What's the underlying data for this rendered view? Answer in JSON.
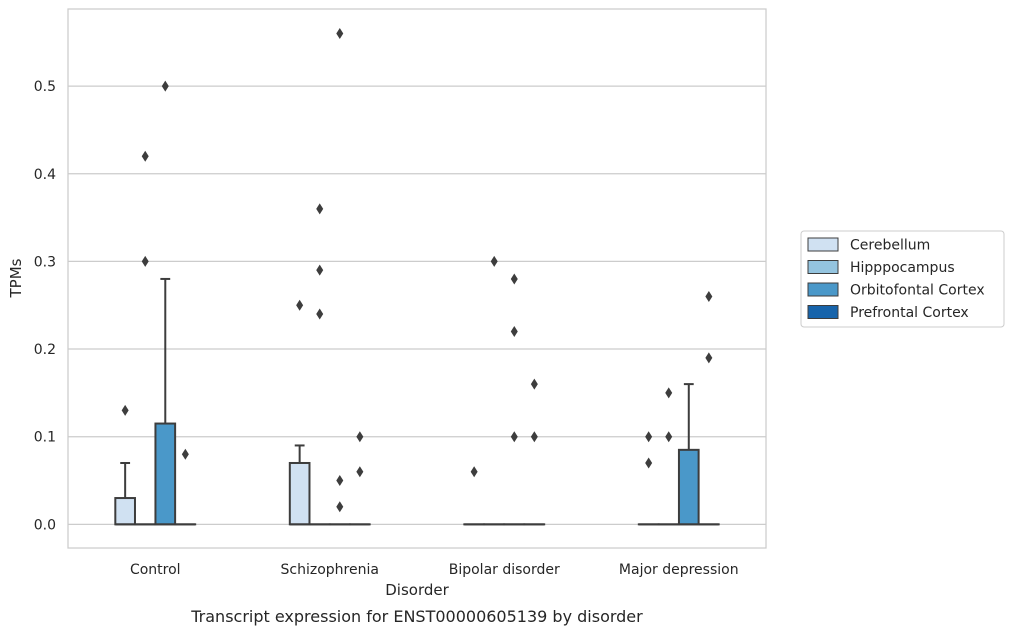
{
  "chart_data": {
    "type": "box",
    "caption": "Transcript expression for ENST00000605139 by disorder",
    "xlabel": "Disorder",
    "ylabel": "TPMs",
    "ylim": [
      -0.027,
      0.588
    ],
    "yticks": [
      0.0,
      0.1,
      0.2,
      0.3,
      0.4,
      0.5
    ],
    "ytick_labels": [
      "0.0",
      "0.1",
      "0.2",
      "0.3",
      "0.4",
      "0.5"
    ],
    "grid": "horizontal",
    "legend_position": "right",
    "categories": [
      "Control",
      "Schizophrenia",
      "Bipolar disorder",
      "Major depression"
    ],
    "series": [
      {
        "name": "Cerebellum",
        "color": "#d0e1f2",
        "boxes": [
          {
            "q1": 0.0,
            "median": 0.0,
            "q3": 0.03,
            "whisker_low": 0.0,
            "whisker_high": 0.07,
            "outliers": [
              0.13
            ]
          },
          {
            "q1": 0.0,
            "median": 0.0,
            "q3": 0.07,
            "whisker_low": 0.0,
            "whisker_high": 0.09,
            "outliers": [
              0.25
            ]
          },
          {
            "q1": 0.0,
            "median": 0.0,
            "q3": 0.0,
            "whisker_low": 0.0,
            "whisker_high": 0.0,
            "outliers": [
              0.06
            ]
          },
          {
            "q1": 0.0,
            "median": 0.0,
            "q3": 0.0,
            "whisker_low": 0.0,
            "whisker_high": 0.0,
            "outliers": [
              0.07,
              0.1
            ]
          }
        ]
      },
      {
        "name": "Hipppocampus",
        "color": "#94c4df",
        "boxes": [
          {
            "q1": 0.0,
            "median": 0.0,
            "q3": 0.0,
            "whisker_low": 0.0,
            "whisker_high": 0.0,
            "outliers": [
              0.3,
              0.42
            ]
          },
          {
            "q1": 0.0,
            "median": 0.0,
            "q3": 0.0,
            "whisker_low": 0.0,
            "whisker_high": 0.0,
            "outliers": [
              0.24,
              0.29,
              0.36
            ]
          },
          {
            "q1": 0.0,
            "median": 0.0,
            "q3": 0.0,
            "whisker_low": 0.0,
            "whisker_high": 0.0,
            "outliers": [
              0.3
            ]
          },
          {
            "q1": 0.0,
            "median": 0.0,
            "q3": 0.0,
            "whisker_low": 0.0,
            "whisker_high": 0.0,
            "outliers": [
              0.1,
              0.15
            ]
          }
        ]
      },
      {
        "name": "Orbitofontal Cortex",
        "color": "#4a98c9",
        "boxes": [
          {
            "q1": 0.0,
            "median": 0.0,
            "q3": 0.115,
            "whisker_low": 0.0,
            "whisker_high": 0.28,
            "outliers": [
              0.5
            ]
          },
          {
            "q1": 0.0,
            "median": 0.0,
            "q3": 0.0,
            "whisker_low": 0.0,
            "whisker_high": 0.0,
            "outliers": [
              0.02,
              0.05,
              0.56
            ]
          },
          {
            "q1": 0.0,
            "median": 0.0,
            "q3": 0.0,
            "whisker_low": 0.0,
            "whisker_high": 0.0,
            "outliers": [
              0.1,
              0.22,
              0.28
            ]
          },
          {
            "q1": 0.0,
            "median": 0.0,
            "q3": 0.085,
            "whisker_low": 0.0,
            "whisker_high": 0.16,
            "outliers": []
          }
        ]
      },
      {
        "name": "Prefrontal Cortex",
        "color": "#1764ab",
        "boxes": [
          {
            "q1": 0.0,
            "median": 0.0,
            "q3": 0.0,
            "whisker_low": 0.0,
            "whisker_high": 0.0,
            "outliers": [
              0.08
            ]
          },
          {
            "q1": 0.0,
            "median": 0.0,
            "q3": 0.0,
            "whisker_low": 0.0,
            "whisker_high": 0.0,
            "outliers": [
              0.06,
              0.1
            ]
          },
          {
            "q1": 0.0,
            "median": 0.0,
            "q3": 0.0,
            "whisker_low": 0.0,
            "whisker_high": 0.0,
            "outliers": [
              0.1,
              0.16
            ]
          },
          {
            "q1": 0.0,
            "median": 0.0,
            "q3": 0.0,
            "whisker_low": 0.0,
            "whisker_high": 0.0,
            "outliers": [
              0.19,
              0.26
            ]
          }
        ]
      }
    ]
  }
}
